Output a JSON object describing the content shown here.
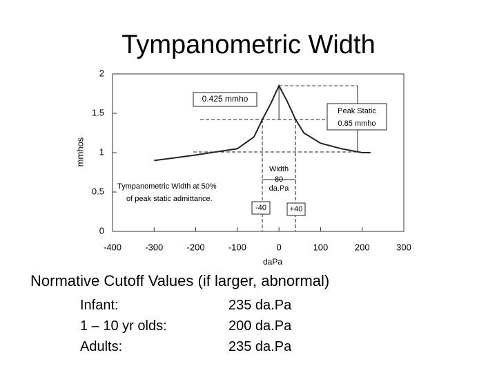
{
  "title": "Tympanometric Width",
  "chart_data": {
    "type": "line",
    "x_label": "daPa",
    "y_label": "mmhos",
    "x": [
      -300,
      -200,
      -100,
      -60,
      -40,
      -20,
      0,
      20,
      40,
      60,
      100,
      150,
      200,
      220
    ],
    "values": [
      0.9,
      0.97,
      1.05,
      1.2,
      1.42,
      1.62,
      1.85,
      1.65,
      1.42,
      1.25,
      1.12,
      1.05,
      1.0,
      1.0
    ],
    "color": "#222222",
    "xlim": [
      -400,
      300
    ],
    "xticks": [
      -400,
      -300,
      -200,
      -100,
      0,
      100,
      200,
      300
    ],
    "ylim": [
      0,
      2
    ],
    "yticks": [
      0,
      0.5,
      1,
      1.5,
      2
    ],
    "annotations": [
      "0.425 mmho",
      "Peak Static",
      "0.85 mmho",
      "Width",
      "80",
      "da.Pa",
      "Tympanometric Width at 50%",
      "of peak static admittance.",
      "-40",
      "+40"
    ]
  },
  "section": "Normative Cutoff Values (if larger, abnormal)",
  "table": {
    "rows": [
      [
        "Infant:",
        "235 da.Pa"
      ],
      [
        "1 – 10 yr olds:",
        "200 da.Pa"
      ],
      [
        "Adults:",
        "235 da.Pa"
      ]
    ]
  }
}
